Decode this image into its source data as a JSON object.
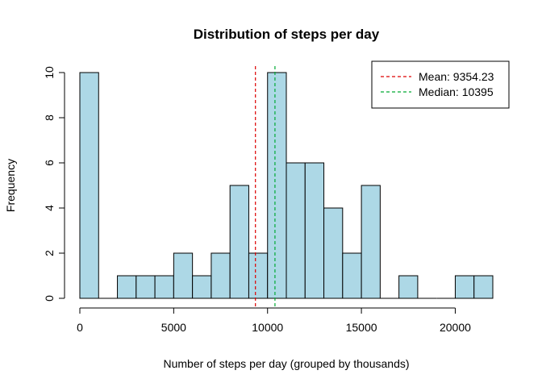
{
  "chart_data": {
    "type": "bar",
    "title": "Distribution of steps per day",
    "xlabel": "Number of steps per day (grouped by thousands)",
    "ylabel": "Frequency",
    "bin_width": 1000,
    "bins": [
      {
        "start": 0,
        "end": 1000,
        "count": 10
      },
      {
        "start": 1000,
        "end": 2000,
        "count": 0
      },
      {
        "start": 2000,
        "end": 3000,
        "count": 1
      },
      {
        "start": 3000,
        "end": 4000,
        "count": 1
      },
      {
        "start": 4000,
        "end": 5000,
        "count": 1
      },
      {
        "start": 5000,
        "end": 6000,
        "count": 2
      },
      {
        "start": 6000,
        "end": 7000,
        "count": 1
      },
      {
        "start": 7000,
        "end": 8000,
        "count": 2
      },
      {
        "start": 8000,
        "end": 9000,
        "count": 5
      },
      {
        "start": 9000,
        "end": 10000,
        "count": 2
      },
      {
        "start": 10000,
        "end": 11000,
        "count": 10
      },
      {
        "start": 11000,
        "end": 12000,
        "count": 6
      },
      {
        "start": 12000,
        "end": 13000,
        "count": 6
      },
      {
        "start": 13000,
        "end": 14000,
        "count": 4
      },
      {
        "start": 14000,
        "end": 15000,
        "count": 2
      },
      {
        "start": 15000,
        "end": 16000,
        "count": 5
      },
      {
        "start": 16000,
        "end": 17000,
        "count": 0
      },
      {
        "start": 17000,
        "end": 18000,
        "count": 1
      },
      {
        "start": 18000,
        "end": 19000,
        "count": 0
      },
      {
        "start": 19000,
        "end": 20000,
        "count": 0
      },
      {
        "start": 20000,
        "end": 21000,
        "count": 1
      },
      {
        "start": 21000,
        "end": 22000,
        "count": 1
      }
    ],
    "xlim": [
      0,
      22000
    ],
    "ylim": [
      0,
      10
    ],
    "x_ticks": [
      0,
      5000,
      10000,
      15000,
      20000
    ],
    "y_ticks": [
      0,
      2,
      4,
      6,
      8,
      10
    ],
    "bar_fill": "#add8e6",
    "bar_stroke": "#000000",
    "reference_lines": [
      {
        "name": "Mean",
        "value": 9354.23,
        "color": "#dd0000",
        "label": "Mean: 9354.23"
      },
      {
        "name": "Median",
        "value": 10395,
        "color": "#00aa33",
        "label": "Median: 10395"
      }
    ],
    "legend_position": "top-right",
    "grid": false
  }
}
